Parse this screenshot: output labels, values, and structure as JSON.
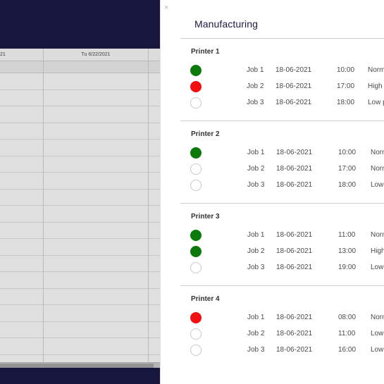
{
  "background": {
    "header_left": "21",
    "header_date": "Tu 6/22/2021"
  },
  "panel": {
    "close_label": "×",
    "title": "Manufacturing",
    "groups": [
      {
        "name": "Printer 1",
        "jobs": [
          {
            "status": "green",
            "job": "Job 1",
            "date": "18-06-2021",
            "time": "10:00",
            "priority": "Norm"
          },
          {
            "status": "red",
            "job": "Job 2",
            "date": "18-06-2021",
            "time": "17:00",
            "priority": "High p"
          },
          {
            "status": "empty",
            "job": "Job 3",
            "date": "18-06-2021",
            "time": "18:00",
            "priority": "Low p"
          }
        ]
      },
      {
        "name": "Printer 2",
        "jobs": [
          {
            "status": "green",
            "job": "Job 1",
            "date": "18-06-2021",
            "time": "10:00",
            "priority": "Norm"
          },
          {
            "status": "empty",
            "job": "Job 2",
            "date": "18-06-2021",
            "time": "17:00",
            "priority": "Norm"
          },
          {
            "status": "empty",
            "job": "Job 3",
            "date": "18-06-2021",
            "time": "18:00",
            "priority": "Low"
          }
        ]
      },
      {
        "name": "Printer 3",
        "jobs": [
          {
            "status": "green",
            "job": "Job 1",
            "date": "18-06-2021",
            "time": "11:00",
            "priority": "Norm"
          },
          {
            "status": "green",
            "job": "Job 2",
            "date": "18-06-2021",
            "time": "13:00",
            "priority": "High"
          },
          {
            "status": "empty",
            "job": "Job 3",
            "date": "18-06-2021",
            "time": "19:00",
            "priority": "Low"
          }
        ]
      },
      {
        "name": "Printer 4",
        "jobs": [
          {
            "status": "red",
            "job": "Job 1",
            "date": "18-06-2021",
            "time": "08:00",
            "priority": "Norm"
          },
          {
            "status": "empty",
            "job": "Job 2",
            "date": "18-06-2021",
            "time": "11:00",
            "priority": "Low"
          },
          {
            "status": "empty",
            "job": "Job 3",
            "date": "18-06-2021",
            "time": "16:00",
            "priority": "Low"
          }
        ]
      }
    ]
  },
  "colors": {
    "green": "#0b7a0b",
    "red": "#f20f0f",
    "navy": "#1b1a45"
  }
}
